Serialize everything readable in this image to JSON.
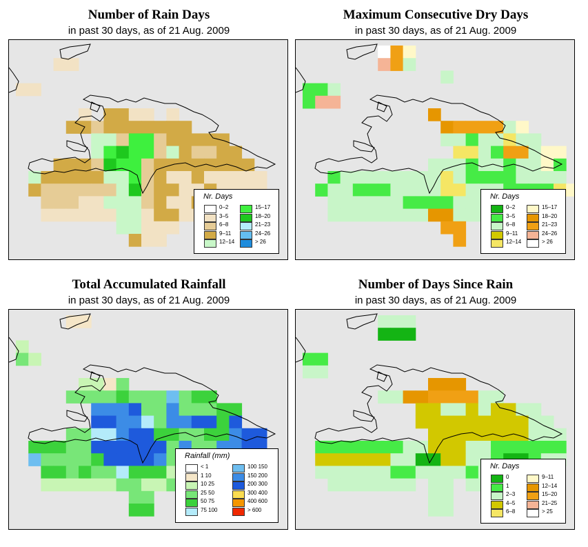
{
  "panels": [
    {
      "title": "Number of Rain Days",
      "subtitle": "in past 30 days, as of  21 Aug. 2009",
      "legend": {
        "title": "Nr. Days",
        "items": [
          {
            "label": "0–2",
            "color": "#ffffff"
          },
          {
            "label": "3–5",
            "color": "#f2e2c4"
          },
          {
            "label": "6–8",
            "color": "#e6cc96"
          },
          {
            "label": "9–11",
            "color": "#d2aa46"
          },
          {
            "label": "12–14",
            "color": "#c8f7c8"
          },
          {
            "label": "15–17",
            "color": "#3ef03e"
          },
          {
            "label": "18–20",
            "color": "#1ec81e"
          },
          {
            "label": "21–23",
            "color": "#b4ecfa"
          },
          {
            "label": "24–26",
            "color": "#64bef0"
          },
          {
            "label": "> 26",
            "color": "#1e8cdc"
          }
        ]
      }
    },
    {
      "title": "Maximum Consecutive Dry Days",
      "subtitle": "in past 30 days, as of  21 Aug. 2009",
      "legend": {
        "title": "Nr. Days",
        "items": [
          {
            "label": "0–2",
            "color": "#14b414"
          },
          {
            "label": "3–5",
            "color": "#46eb46"
          },
          {
            "label": "6–8",
            "color": "#c8f5c8"
          },
          {
            "label": "9–11",
            "color": "#d2c800"
          },
          {
            "label": "12–14",
            "color": "#f5e664"
          },
          {
            "label": "15–17",
            "color": "#fff8c8"
          },
          {
            "label": "18–20",
            "color": "#e69600"
          },
          {
            "label": "21–23",
            "color": "#f0a014"
          },
          {
            "label": "24–26",
            "color": "#f5b496"
          },
          {
            "label": "> 26",
            "color": "#ffffff"
          }
        ]
      }
    },
    {
      "title": "Total Accumulated Rainfall",
      "subtitle": "in past 30 days, as of  21 Aug. 2009",
      "legend": {
        "title": "Rainfall (mm)",
        "items": [
          {
            "label": "< 1",
            "color": "#ffffff"
          },
          {
            "label": "1   10",
            "color": "#f5e6c8"
          },
          {
            "label": "10   25",
            "color": "#c8f5b4"
          },
          {
            "label": "25   50",
            "color": "#78e678"
          },
          {
            "label": "50   75",
            "color": "#3cd23c"
          },
          {
            "label": "75   100",
            "color": "#b4ebfa"
          },
          {
            "label": "100   150",
            "color": "#6ebef0"
          },
          {
            "label": "150   200",
            "color": "#3c8ce6"
          },
          {
            "label": "200   300",
            "color": "#1e5adc"
          },
          {
            "label": "300   400",
            "color": "#fadc50"
          },
          {
            "label": "400   600",
            "color": "#f59600"
          },
          {
            "label": "> 600",
            "color": "#f02800"
          }
        ]
      }
    },
    {
      "title": "Number of Days Since Rain",
      "subtitle": "in past 30 days, as of  21 Aug. 2009",
      "legend": {
        "title": "Nr. Days",
        "items": [
          {
            "label": "0",
            "color": "#14b414"
          },
          {
            "label": "1",
            "color": "#46eb46"
          },
          {
            "label": "2–3",
            "color": "#c8f5c8"
          },
          {
            "label": "4–5",
            "color": "#d2c800"
          },
          {
            "label": "6–8",
            "color": "#f5e664"
          },
          {
            "label": "9–11",
            "color": "#fff8c8"
          },
          {
            "label": "12–14",
            "color": "#e69600"
          },
          {
            "label": "15–20",
            "color": "#f0a014"
          },
          {
            "label": "21–25",
            "color": "#f5b496"
          },
          {
            "label": "> 25",
            "color": "#ffffff"
          }
        ]
      }
    }
  ],
  "grids": [
    {
      "map": [
        "....................",
        "...aa...............",
        "....................",
        "bb..................",
        "....................",
        ".....b.ccbb.b.......",
        "....ccdccccccc......",
        "......eedffdccccc...",
        "......efgffdecddcc..",
        "...cccdgffdcccccccc.",
        ".eccccceefdcbbcbbbbb",
        ".cddddddegdccbbcbbbb",
        "..dddbbeeedcbbcbbcb.",
        "..bbbbbbeebccbbb....",
        "........eebbb.......",
        ".........cab........"
      ],
      "colors": {
        "a": "#f2e2c4",
        "b": "#f2e2c4",
        "c": "#d2aa46",
        "d": "#e6cc96",
        "e": "#c8f7c8",
        "f": "#3ef03e",
        "g": "#1ec81e"
      }
    },
    {
      "map": [
        "......jhk...........",
        "......nhb...........",
        "...........f........",
        "ccf.................",
        "cnn.................",
        "..........g.........",
        "...........ghhhhbk..",
        "...........bbcbbdbb.",
        "............ddbchhbkk",
        "..........bbbcbbcbbkc",
        "..cbbbbbbbbdbccccbbbb",
        ".cbbcccbbbbddbbbccccdk",
        "..bbbbbbccccbbbbbdcc.",
        "..bbbbbbbbggbbbbbb...",
        "...........hh........",
        "............h........"
      ],
      "colors": {
        "b": "#c8f5c8",
        "c": "#46eb46",
        "d": "#f5e664",
        "f": "#c8f5c8",
        "g": "#e69600",
        "h": "#f0a014",
        "j": "#ffffff",
        "k": "#fff8c8",
        "n": "#f5b496"
      }
    },
    {
      "map": [
        "....aa..............",
        "....................",
        "b...................",
        "cb..................",
        "....................",
        ".....bbac...........",
        "....ccccdcccfcdd....",
        "......ggghccgcccdd..",
        "......hhggecgghhdh..",
        "....cceeghhddccddghh",
        ".dddcchhhhhhcgccgghh",
        ".fccccdhhhhgcccfgcff",
        "..ddcdccedddbbccfc..",
        "..bbbbbbccbbcc......",
        ".........cc.........",
        ".........dd........."
      ],
      "colors": {
        "a": "#f5e6c8",
        "b": "#c8f5b4",
        "c": "#78e678",
        "d": "#3cd23c",
        "e": "#b4ebfa",
        "f": "#6ebef0",
        "g": "#3c8ce6",
        "h": "#1e5adc"
      }
    },
    {
      "map": [
        "......aaa...........",
        "......bbb...........",
        "....................",
        "cc..................",
        "dd..................",
        "..........eee.......",
        "......ddeeffffdd....",
        ".........hhddgdhhdd.",
        ".........hhhggghhhdd",
        "..........hhhgghhhaaa",
        ".cccccccddhhhddcccccc",
        ".ggggggddbbhhddcbbcdd",
        ".ddddddccddddcddcccc.",
        "..ddddddd.dd.ddd.....",
        "..........dd.........",
        "..........dd........."
      ],
      "colors": {
        "a": "#c8f5c8",
        "b": "#14b414",
        "c": "#46eb46",
        "d": "#c8f5c8",
        "e": "#e69600",
        "f": "#f0a014",
        "g": "#d2c800",
        "h": "#d2c800"
      }
    }
  ]
}
